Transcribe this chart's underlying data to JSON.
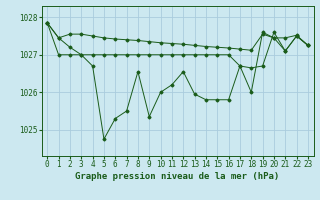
{
  "background_color": "#cce8f0",
  "grid_color": "#aaccdd",
  "line_color": "#1a5c1a",
  "title": "Graphe pression niveau de la mer (hPa)",
  "ylim": [
    1024.3,
    1028.3
  ],
  "xlim": [
    -0.5,
    23.5
  ],
  "yticks": [
    1025,
    1026,
    1027,
    1028
  ],
  "xticks": [
    0,
    1,
    2,
    3,
    4,
    5,
    6,
    7,
    8,
    9,
    10,
    11,
    12,
    13,
    14,
    15,
    16,
    17,
    18,
    19,
    20,
    21,
    22,
    23
  ],
  "line1_y": [
    1027.85,
    1027.45,
    1027.55,
    1027.55,
    1027.5,
    1027.45,
    1027.42,
    1027.4,
    1027.38,
    1027.35,
    1027.32,
    1027.3,
    1027.28,
    1027.25,
    1027.22,
    1027.2,
    1027.18,
    1027.15,
    1027.12,
    1027.55,
    1027.45,
    1027.45,
    1027.52,
    1027.25
  ],
  "line2_y": [
    1027.85,
    1027.0,
    1027.0,
    1027.0,
    1027.0,
    1027.0,
    1027.0,
    1027.0,
    1027.0,
    1027.0,
    1027.0,
    1027.0,
    1027.0,
    1027.0,
    1027.0,
    1027.0,
    1027.0,
    1026.7,
    1026.65,
    1026.7,
    1027.6,
    1027.1,
    1027.5,
    1027.25
  ],
  "line3_y": [
    1027.85,
    1027.45,
    1027.2,
    1027.0,
    1026.7,
    1024.75,
    1025.3,
    1025.5,
    1026.55,
    1025.35,
    1026.0,
    1026.2,
    1026.55,
    1025.95,
    1025.8,
    1025.8,
    1025.8,
    1026.7,
    1026.0,
    1027.6,
    1027.45,
    1027.1,
    1027.5,
    1027.25
  ],
  "title_fontsize": 6.5,
  "tick_fontsize": 5.5
}
